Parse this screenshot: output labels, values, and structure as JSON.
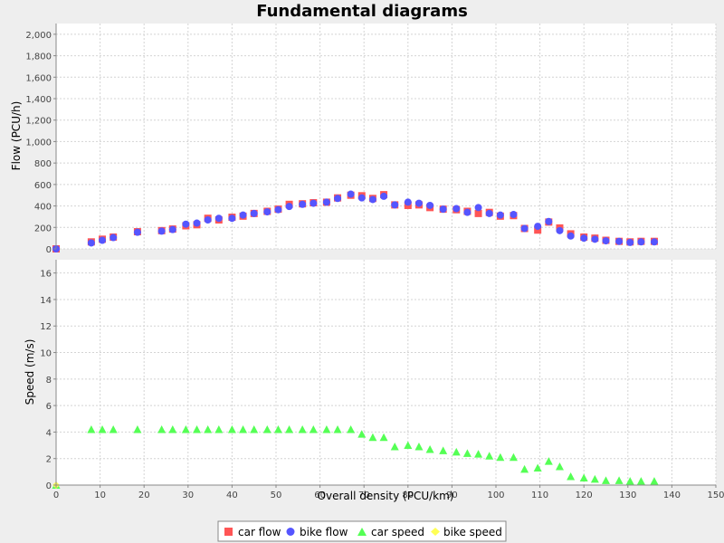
{
  "chart_data": {
    "type": "scatter",
    "title": "Fundamental diagrams",
    "xlabel": "Overall density (PCU/km)",
    "xlim": [
      0,
      150
    ],
    "x_ticks": [
      "0",
      "10",
      "20",
      "30",
      "40",
      "50",
      "60",
      "70",
      "80",
      "90",
      "100",
      "110",
      "120",
      "130",
      "140",
      "150"
    ],
    "grid": true,
    "legend_position": "bottom",
    "panels": [
      {
        "ylabel": "Flow (PCU/h)",
        "ylim": [
          0,
          2100
        ],
        "y_ticks": [
          {
            "value": 0,
            "label": "0"
          },
          {
            "value": 200,
            "label": "200"
          },
          {
            "value": 400,
            "label": "400"
          },
          {
            "value": 600,
            "label": "600"
          },
          {
            "value": 800,
            "label": "800"
          },
          {
            "value": 1000,
            "label": "1,000"
          },
          {
            "value": 1200,
            "label": "1,200"
          },
          {
            "value": 1400,
            "label": "1,400"
          },
          {
            "value": 1600,
            "label": "1,600"
          },
          {
            "value": 1800,
            "label": "1,800"
          },
          {
            "value": 2000,
            "label": "2,000"
          }
        ],
        "series": [
          {
            "name": "car flow",
            "marker": "square",
            "color": "#ff5555",
            "points": [
              [
                0,
                0
              ],
              [
                8,
                65
              ],
              [
                10.5,
                90
              ],
              [
                13,
                110
              ],
              [
                18.5,
                160
              ],
              [
                24,
                170
              ],
              [
                26.5,
                185
              ],
              [
                29.5,
                215
              ],
              [
                32,
                225
              ],
              [
                34.5,
                285
              ],
              [
                37,
                270
              ],
              [
                40,
                295
              ],
              [
                42.5,
                305
              ],
              [
                45,
                330
              ],
              [
                48,
                350
              ],
              [
                50.5,
                370
              ],
              [
                53,
                415
              ],
              [
                56,
                420
              ],
              [
                58.5,
                430
              ],
              [
                61.5,
                435
              ],
              [
                64,
                475
              ],
              [
                67,
                500
              ],
              [
                69.5,
                495
              ],
              [
                72,
                470
              ],
              [
                74.5,
                505
              ],
              [
                77,
                410
              ],
              [
                80,
                405
              ],
              [
                82.5,
                410
              ],
              [
                85,
                385
              ],
              [
                88,
                370
              ],
              [
                91,
                365
              ],
              [
                93.5,
                350
              ],
              [
                96,
                330
              ],
              [
                98.5,
                340
              ],
              [
                101,
                305
              ],
              [
                104,
                310
              ],
              [
                106.5,
                190
              ],
              [
                109.5,
                175
              ],
              [
                112,
                250
              ],
              [
                114.5,
                195
              ],
              [
                117,
                140
              ],
              [
                120,
                110
              ],
              [
                122.5,
                100
              ],
              [
                125,
                80
              ],
              [
                128,
                70
              ],
              [
                130.5,
                65
              ],
              [
                133,
                70
              ],
              [
                136,
                70
              ]
            ]
          },
          {
            "name": "bike flow",
            "marker": "circle",
            "color": "#5555ff",
            "points": [
              [
                0,
                0
              ],
              [
                8,
                55
              ],
              [
                10.5,
                80
              ],
              [
                13,
                105
              ],
              [
                18.5,
                155
              ],
              [
                24,
                165
              ],
              [
                26.5,
                180
              ],
              [
                29.5,
                230
              ],
              [
                32,
                240
              ],
              [
                34.5,
                270
              ],
              [
                37,
                285
              ],
              [
                40,
                285
              ],
              [
                42.5,
                315
              ],
              [
                45,
                330
              ],
              [
                48,
                345
              ],
              [
                50.5,
                365
              ],
              [
                53,
                395
              ],
              [
                56,
                415
              ],
              [
                58.5,
                425
              ],
              [
                61.5,
                435
              ],
              [
                64,
                470
              ],
              [
                67,
                510
              ],
              [
                69.5,
                475
              ],
              [
                72,
                460
              ],
              [
                74.5,
                490
              ],
              [
                77,
                410
              ],
              [
                80,
                435
              ],
              [
                82.5,
                425
              ],
              [
                85,
                405
              ],
              [
                88,
                370
              ],
              [
                91,
                375
              ],
              [
                93.5,
                340
              ],
              [
                96,
                385
              ],
              [
                98.5,
                330
              ],
              [
                101,
                315
              ],
              [
                104,
                320
              ],
              [
                106.5,
                190
              ],
              [
                109.5,
                210
              ],
              [
                112,
                255
              ],
              [
                114.5,
                170
              ],
              [
                117,
                120
              ],
              [
                120,
                100
              ],
              [
                122.5,
                90
              ],
              [
                125,
                75
              ],
              [
                128,
                70
              ],
              [
                130.5,
                60
              ],
              [
                133,
                65
              ],
              [
                136,
                65
              ]
            ]
          }
        ]
      },
      {
        "ylabel": "Speed (m/s)",
        "ylim": [
          0,
          17
        ],
        "y_ticks": [
          {
            "value": 0,
            "label": "0"
          },
          {
            "value": 2,
            "label": "2"
          },
          {
            "value": 4,
            "label": "4"
          },
          {
            "value": 6,
            "label": "6"
          },
          {
            "value": 8,
            "label": "8"
          },
          {
            "value": 10,
            "label": "10"
          },
          {
            "value": 12,
            "label": "12"
          },
          {
            "value": 14,
            "label": "14"
          },
          {
            "value": 16,
            "label": "16"
          }
        ],
        "series": [
          {
            "name": "car speed",
            "marker": "triangle",
            "color": "#55ff55",
            "points": [
              [
                0,
                0
              ],
              [
                8,
                4.2
              ],
              [
                10.5,
                4.2
              ],
              [
                13,
                4.2
              ],
              [
                18.5,
                4.2
              ],
              [
                24,
                4.2
              ],
              [
                26.5,
                4.2
              ],
              [
                29.5,
                4.2
              ],
              [
                32,
                4.2
              ],
              [
                34.5,
                4.2
              ],
              [
                37,
                4.2
              ],
              [
                40,
                4.2
              ],
              [
                42.5,
                4.2
              ],
              [
                45,
                4.2
              ],
              [
                48,
                4.2
              ],
              [
                50.5,
                4.2
              ],
              [
                53,
                4.2
              ],
              [
                56,
                4.2
              ],
              [
                58.5,
                4.2
              ],
              [
                61.5,
                4.2
              ],
              [
                64,
                4.2
              ],
              [
                67,
                4.2
              ],
              [
                69.5,
                3.85
              ],
              [
                72,
                3.6
              ],
              [
                74.5,
                3.6
              ],
              [
                77,
                2.9
              ],
              [
                80,
                3.0
              ],
              [
                82.5,
                2.9
              ],
              [
                85,
                2.7
              ],
              [
                88,
                2.6
              ],
              [
                91,
                2.5
              ],
              [
                93.5,
                2.4
              ],
              [
                96,
                2.35
              ],
              [
                98.5,
                2.2
              ],
              [
                101,
                2.1
              ],
              [
                104,
                2.1
              ],
              [
                106.5,
                1.2
              ],
              [
                109.5,
                1.3
              ],
              [
                112,
                1.8
              ],
              [
                114.5,
                1.4
              ],
              [
                117,
                0.65
              ],
              [
                120,
                0.55
              ],
              [
                122.5,
                0.45
              ],
              [
                125,
                0.35
              ],
              [
                128,
                0.35
              ],
              [
                130.5,
                0.3
              ],
              [
                133,
                0.3
              ],
              [
                136,
                0.3
              ]
            ]
          },
          {
            "name": "bike speed",
            "marker": "diamond",
            "color": "#ffff55",
            "points": [
              [
                0,
                0
              ]
            ]
          }
        ]
      }
    ]
  }
}
